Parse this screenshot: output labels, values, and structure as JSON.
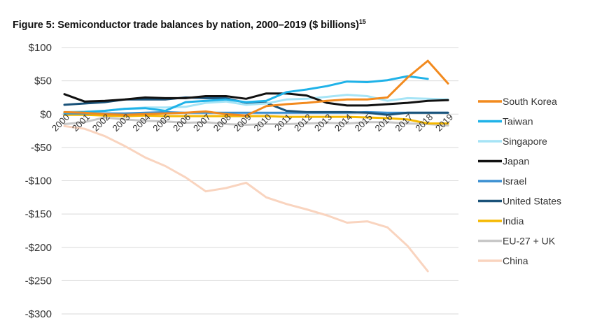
{
  "header": {
    "title": "Figure 5: Semiconductor trade balances by nation, 2000–2019 ($ billions)",
    "footnote": "15"
  },
  "chart_data": {
    "type": "line",
    "title": "Figure 5: Semiconductor trade balances by nation, 2000–2019 ($ billions)",
    "xlabel": "",
    "ylabel": "",
    "x": [
      "2000",
      "2001",
      "2002",
      "2003",
      "2004",
      "2005",
      "2006",
      "2007",
      "2008",
      "2009",
      "2010",
      "2011",
      "2012",
      "2013",
      "2014",
      "2015",
      "2016",
      "2017",
      "2018",
      "2019"
    ],
    "ylim": [
      -300,
      100
    ],
    "yticks": [
      100,
      50,
      0,
      -50,
      -100,
      -150,
      -200,
      -250,
      -300
    ],
    "ytick_labels": [
      "$100",
      "$50",
      "$0",
      "-$50",
      "-$100",
      "-$150",
      "-$200",
      "-$250",
      "-$300"
    ],
    "grid": "horizontal",
    "legend_position": "right",
    "series": [
      {
        "name": "South Korea",
        "color": "#f28a1e",
        "values": [
          3,
          2,
          0,
          -1,
          0,
          1,
          2,
          4,
          0,
          -2,
          12,
          15,
          17,
          20,
          22,
          22,
          25,
          55,
          80,
          46
        ]
      },
      {
        "name": "Taiwan",
        "color": "#1fb2e8",
        "values": [
          2,
          3,
          5,
          8,
          9,
          5,
          18,
          20,
          22,
          18,
          20,
          33,
          37,
          42,
          49,
          48,
          51,
          57,
          53,
          null
        ]
      },
      {
        "name": "Singapore",
        "color": "#a6e4f6",
        "values": [
          3,
          4,
          5,
          8,
          10,
          10,
          11,
          17,
          19,
          14,
          16,
          22,
          23,
          26,
          29,
          27,
          20,
          24,
          23,
          22
        ]
      },
      {
        "name": "Japan",
        "color": "#111111",
        "values": [
          30,
          19,
          20,
          22,
          25,
          24,
          24,
          27,
          27,
          23,
          31,
          31,
          28,
          17,
          13,
          13,
          15,
          17,
          20,
          21
        ]
      },
      {
        "name": "Israel",
        "color": "#3a8fd1",
        "values": [
          1,
          1,
          1,
          1,
          2,
          3,
          2,
          2,
          2,
          2,
          2,
          2,
          2,
          2,
          2,
          3,
          2,
          2,
          2,
          2
        ]
      },
      {
        "name": "United States",
        "color": "#1a5279",
        "values": [
          14,
          16,
          18,
          22,
          22,
          22,
          25,
          24,
          24,
          17,
          17,
          5,
          3,
          3,
          3,
          2,
          -1,
          2,
          2,
          2
        ]
      },
      {
        "name": "India",
        "color": "#f5b800",
        "values": [
          -1,
          -1,
          -2,
          -3,
          -2,
          -3,
          -3,
          -3,
          -3,
          -3,
          -3,
          -4,
          -4,
          -4,
          -4,
          -5,
          -6,
          -8,
          -14,
          -14
        ]
      },
      {
        "name": "EU-27 + UK",
        "color": "#c8c8c8",
        "values": [
          -15,
          -12,
          -5,
          -8,
          -10,
          -11,
          -13,
          -12,
          -15,
          -16,
          -15,
          -15,
          -14,
          -13,
          -14,
          -12,
          -12,
          -14,
          -15,
          -17
        ]
      },
      {
        "name": "China",
        "color": "#f9d4bf",
        "values": [
          -18,
          -22,
          -33,
          -48,
          -65,
          -78,
          -95,
          -116,
          -111,
          -103,
          -125,
          -135,
          -143,
          -152,
          -163,
          -161,
          -170,
          -198,
          -236,
          null
        ]
      }
    ]
  }
}
